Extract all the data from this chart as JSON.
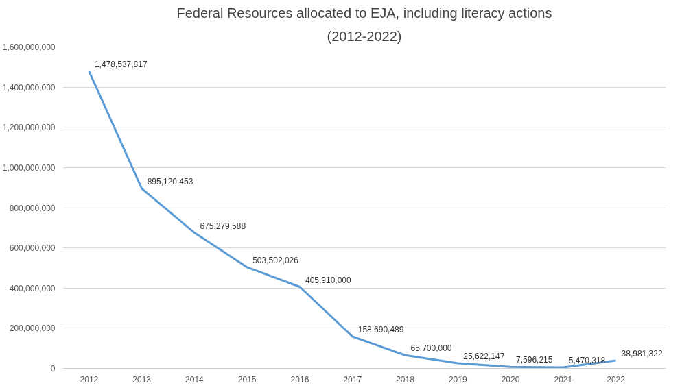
{
  "chart_data": {
    "type": "line",
    "title": "Federal Resources allocated to EJA, including literacy actions",
    "subtitle": "(2012-2022)",
    "categories": [
      "2012",
      "2013",
      "2014",
      "2015",
      "2016",
      "2017",
      "2018",
      "2019",
      "2020",
      "2021",
      "2022"
    ],
    "series": [
      {
        "color": "#5b9bd5",
        "values": [
          1478537817,
          895120453,
          675279588,
          503502026,
          405910000,
          158690489,
          65700000,
          25622147,
          7596215,
          5470318,
          38981322
        ],
        "value_labels": [
          "1,478,537,817",
          "895,120,453",
          "675,279,588",
          "503,502,026",
          "405,910,000",
          "158,690,489",
          "65,700,000",
          "25,622,147",
          "7,596,215",
          "5,470,318",
          "38,981,322"
        ]
      }
    ],
    "ylim": [
      0,
      1600000000
    ],
    "yticks": [
      {
        "value": 0,
        "label": "0"
      },
      {
        "value": 200000000,
        "label": "200,000,000"
      },
      {
        "value": 400000000,
        "label": "400,000,000"
      },
      {
        "value": 600000000,
        "label": "600,000,000"
      },
      {
        "value": 800000000,
        "label": "800,000,000"
      },
      {
        "value": 1000000000,
        "label": "1,000,000,000"
      },
      {
        "value": 1200000000,
        "label": "1,200,000,000"
      },
      {
        "value": 1400000000,
        "label": "1,400,000,000"
      },
      {
        "value": 1600000000,
        "label": "1,600,000,000"
      }
    ],
    "grid": "y",
    "marker": "none",
    "line_style": "solid"
  }
}
